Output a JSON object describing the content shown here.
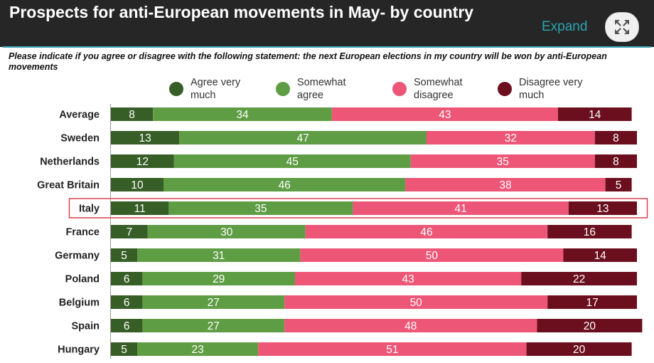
{
  "header": {
    "title": "Prospects for anti-European movements in May- by country",
    "expand_label": "Expand",
    "subtitle": "Please indicate if you agree or disagree with the following statement: the next European elections in my country will be won by anti-European movements"
  },
  "colors": {
    "header_bg": "#262626",
    "accent": "#3aa7b7",
    "highlight_border": "#d9424f"
  },
  "icons": {
    "expand": "expand-arrows-icon"
  },
  "chart_data": {
    "type": "bar",
    "orientation": "horizontal",
    "stacked": true,
    "categories": [
      "Average",
      "Sweden",
      "Netherlands",
      "Great Britain",
      "Italy",
      "France",
      "Germany",
      "Poland",
      "Belgium",
      "Spain",
      "Hungary"
    ],
    "highlighted_category": "Italy",
    "series": [
      {
        "name": "Agree very\nmuch",
        "color": "#375e26",
        "values": [
          8,
          13,
          12,
          10,
          11,
          7,
          5,
          6,
          6,
          6,
          5
        ]
      },
      {
        "name": "Somewhat\nagree",
        "color": "#5f9d44",
        "values": [
          34,
          47,
          45,
          46,
          35,
          30,
          31,
          29,
          27,
          27,
          23
        ]
      },
      {
        "name": "Somewhat\ndisagree",
        "color": "#ee5677",
        "values": [
          43,
          32,
          35,
          38,
          41,
          46,
          50,
          43,
          50,
          48,
          51
        ]
      },
      {
        "name": "Disagree very\nmuch",
        "color": "#6b0f1e",
        "values": [
          14,
          8,
          8,
          5,
          13,
          16,
          14,
          22,
          17,
          20,
          20
        ]
      }
    ],
    "legend_position": "top",
    "grid": false
  }
}
